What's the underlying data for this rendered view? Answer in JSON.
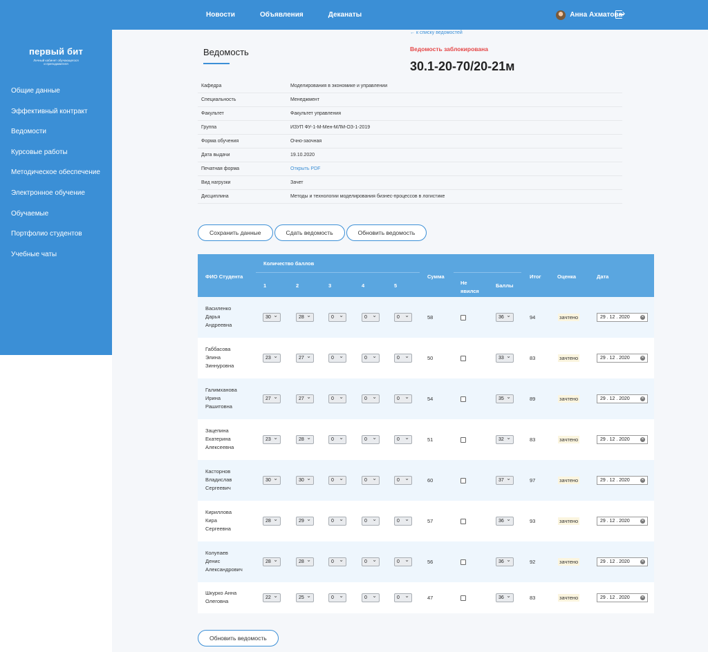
{
  "header": {
    "nav": [
      "Новости",
      "Объявления",
      "Деканаты"
    ],
    "user_name": "Анна Ахматова"
  },
  "sidebar": {
    "logo": "первый бит",
    "logo_sub_1": "Личный кабинет обучающегося",
    "logo_sub_2": "и преподавателя",
    "items": [
      "Общие данные",
      "Эффективный контракт",
      "Ведомости",
      "Курсовые работы",
      "Методическое обеспечение",
      "Электронное обучение",
      "Обучаемые",
      "Портфолио студентов",
      "Учебные чаты"
    ]
  },
  "page": {
    "title": "Ведомость",
    "back_link": "← к списку ведомостей",
    "locked": "Ведомость заблокирована",
    "code": "30.1-20-70/20-21м"
  },
  "info": [
    {
      "label": "Кафедра",
      "value": "Моделирования в экономике и управлении"
    },
    {
      "label": "Специальность",
      "value": "Менеджмент"
    },
    {
      "label": "Факультет",
      "value": "Факультет управления"
    },
    {
      "label": "Группа",
      "value": "ИЗУП ФУ-1-М-Мен-МЛМ-ОЗ-1-2019"
    },
    {
      "label": "Форма обучения",
      "value": "Очно-заочная"
    },
    {
      "label": "Дата выдачи",
      "value": "19.10.2020"
    },
    {
      "label": "Печатная форма",
      "value": "Открыть PDF"
    },
    {
      "label": "Вид нагрузки",
      "value": "Зачет"
    },
    {
      "label": "Дисциплина",
      "value": "Методы и технологии моделирования бизнес-процессов в логистике"
    }
  ],
  "actions": {
    "save": "Сохранить данные",
    "submit": "Сдать ведомость",
    "refresh": "Обновить ведомость",
    "refresh_bottom": "Обновить ведомость"
  },
  "table": {
    "headers": {
      "name": "ФИО Студента",
      "points": "Количество баллов",
      "c1": "1",
      "c2": "2",
      "c3": "3",
      "c4": "4",
      "c5": "5",
      "sum": "Сумма",
      "absent_1": "Не",
      "absent_2": "явился",
      "points2": "Баллы",
      "total": "Итог",
      "grade": "Оценка",
      "date": "Дата"
    },
    "rows": [
      {
        "name": [
          "Василенко",
          "Дарья",
          "Андреевна"
        ],
        "scores": [
          "30",
          "28",
          "0",
          "0",
          "0"
        ],
        "sum": "58",
        "points": "36",
        "total": "94",
        "grade": "зачтено",
        "date": "29 . 12 . 2020"
      },
      {
        "name": [
          "Габбасова",
          "Элина",
          "Зиннуровна"
        ],
        "scores": [
          "23",
          "27",
          "0",
          "0",
          "0"
        ],
        "sum": "50",
        "points": "33",
        "total": "83",
        "grade": "зачтено",
        "date": "29 . 12 . 2020"
      },
      {
        "name": [
          "Галимханова",
          "Ирина",
          "Рашитовна"
        ],
        "scores": [
          "27",
          "27",
          "0",
          "0",
          "0"
        ],
        "sum": "54",
        "points": "35",
        "total": "89",
        "grade": "зачтено",
        "date": "29 . 12 . 2020"
      },
      {
        "name": [
          "Зацепина",
          "Екатерина",
          "Алексеевна"
        ],
        "scores": [
          "23",
          "28",
          "0",
          "0",
          "0"
        ],
        "sum": "51",
        "points": "32",
        "total": "83",
        "grade": "зачтено",
        "date": "29 . 12 . 2020"
      },
      {
        "name": [
          "Касторнов",
          "Владислав",
          "Сергеевич"
        ],
        "scores": [
          "30",
          "30",
          "0",
          "0",
          "0"
        ],
        "sum": "60",
        "points": "37",
        "total": "97",
        "grade": "зачтено",
        "date": "29 . 12 . 2020"
      },
      {
        "name": [
          "Кириллова",
          "Кира",
          "Сергеевна"
        ],
        "scores": [
          "28",
          "29",
          "0",
          "0",
          "0"
        ],
        "sum": "57",
        "points": "36",
        "total": "93",
        "grade": "зачтено",
        "date": "29 . 12 . 2020"
      },
      {
        "name": [
          "Колупаев",
          "Денис",
          "Александрович"
        ],
        "scores": [
          "28",
          "28",
          "0",
          "0",
          "0"
        ],
        "sum": "56",
        "points": "36",
        "total": "92",
        "grade": "зачтено",
        "date": "29 . 12 . 2020"
      },
      {
        "name": [
          "Шкурко Анна",
          "Олеговна"
        ],
        "scores": [
          "22",
          "25",
          "0",
          "0",
          "0"
        ],
        "sum": "47",
        "points": "36",
        "total": "83",
        "grade": "зачтено",
        "date": "29 . 12 . 2020"
      }
    ]
  }
}
